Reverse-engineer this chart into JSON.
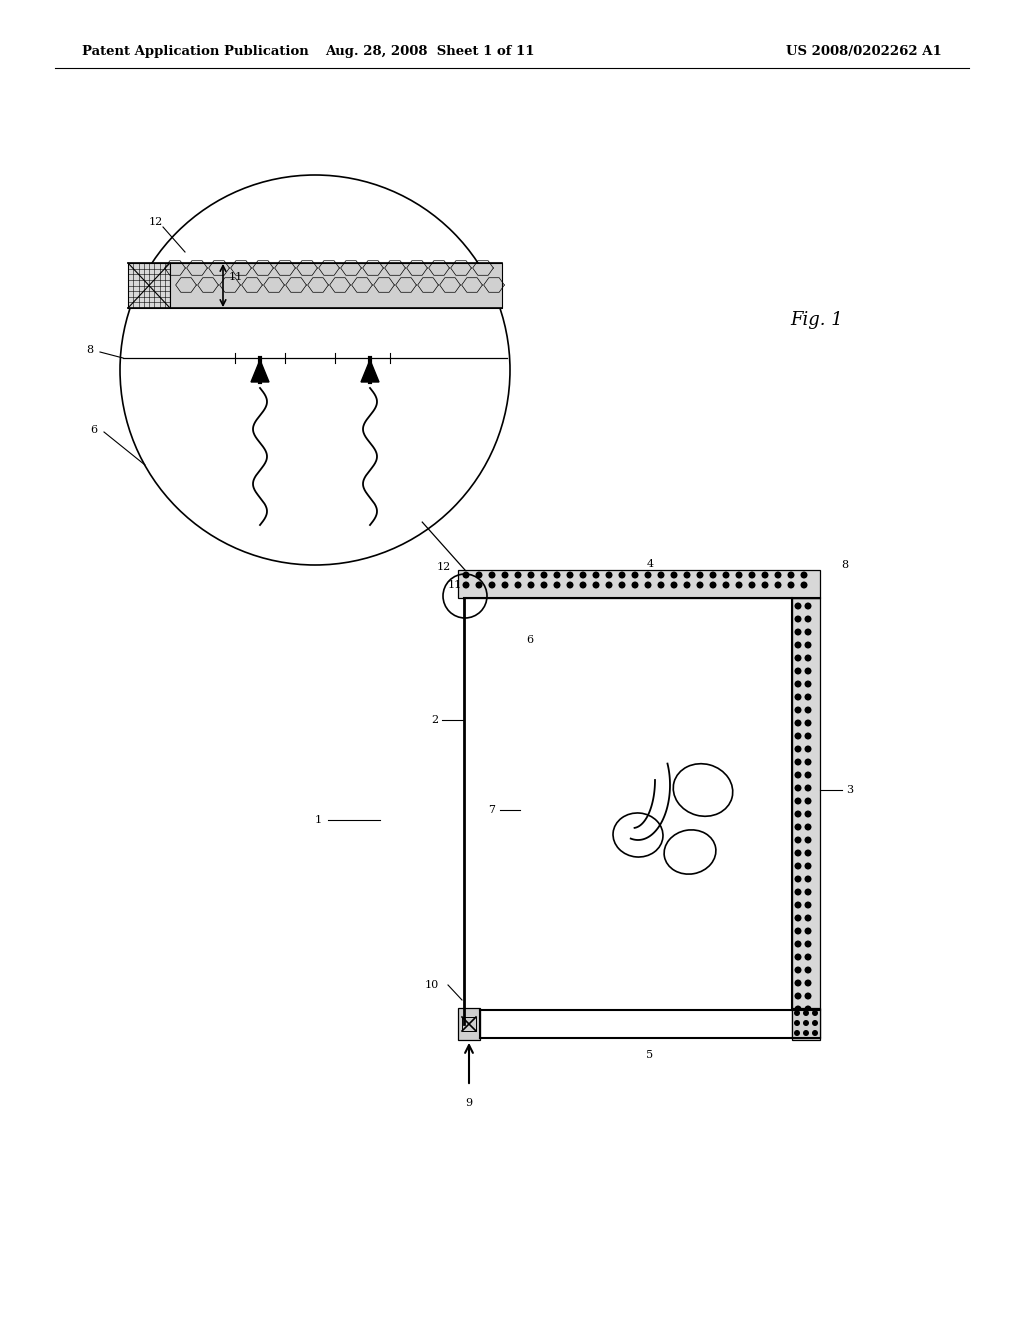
{
  "bg_color": "#ffffff",
  "line_color": "#000000",
  "header_left": "Patent Application Publication",
  "header_mid": "Aug. 28, 2008  Sheet 1 of 11",
  "header_right": "US 2008/0202262 A1",
  "fig_label": "Fig. 1",
  "label_fontsize": 8,
  "header_fontsize": 9.5
}
